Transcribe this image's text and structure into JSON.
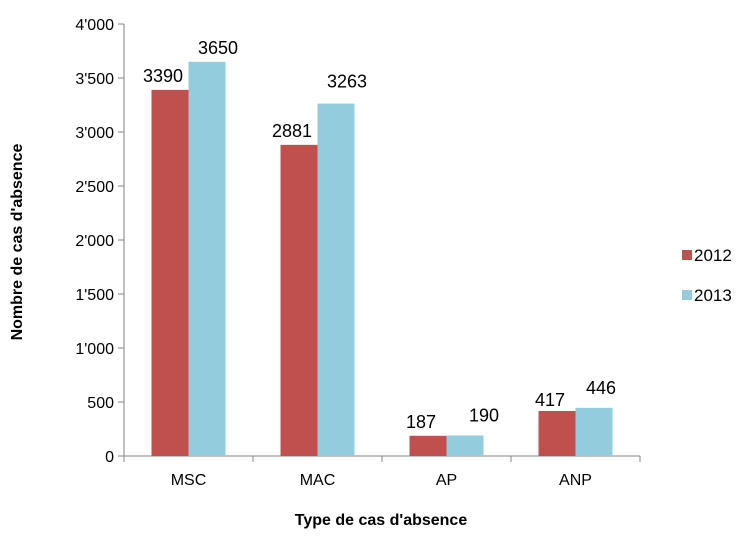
{
  "chart_data": {
    "type": "bar",
    "title": "",
    "xlabel": "Type de cas d'absence",
    "ylabel": "Nombre de cas d'absence",
    "categories": [
      "MSC",
      "MAC",
      "AP",
      "ANP"
    ],
    "series": [
      {
        "name": "2012",
        "values": [
          3390,
          2881,
          187,
          417
        ],
        "color": "#c0504d"
      },
      {
        "name": "2013",
        "values": [
          3650,
          3263,
          190,
          446
        ],
        "color": "#93cddd"
      }
    ],
    "ylim": [
      0,
      4000
    ],
    "yticks": [
      0,
      500,
      1000,
      1500,
      2000,
      2500,
      3000,
      3500,
      4000
    ],
    "ytick_labels": [
      "0",
      "500",
      "1'000",
      "1'500",
      "2'000",
      "2'500",
      "3'000",
      "3'500",
      "4'000"
    ],
    "grid": false,
    "legend_position": "right"
  }
}
